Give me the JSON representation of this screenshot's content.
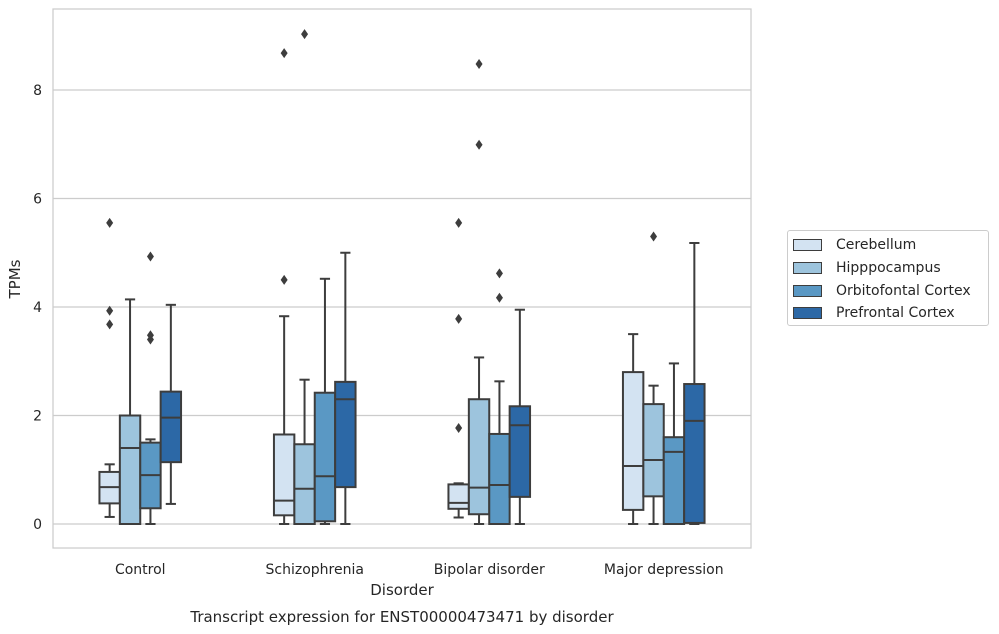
{
  "chart_data": {
    "type": "box",
    "title": "Transcript expression for ENST00000473471 by disorder",
    "xlabel": "Disorder",
    "ylabel": "TPMs",
    "ylim": [
      -0.45,
      9.6
    ],
    "yticks": [
      0,
      2,
      4,
      6,
      8
    ],
    "grid": "horizontal",
    "legend_position": "right",
    "categories": [
      "Control",
      "Schizophrenia",
      "Bipolar disorder",
      "Major depression"
    ],
    "series": [
      {
        "name": "Cerebellum",
        "color": "#d3e3f2",
        "boxes": [
          {
            "whisker_low": 0.13,
            "q1": 0.38,
            "median": 0.68,
            "q3": 0.96,
            "whisker_high": 1.1,
            "outliers": [
              3.68,
              3.93,
              5.55
            ]
          },
          {
            "whisker_low": 0.0,
            "q1": 0.16,
            "median": 0.43,
            "q3": 1.65,
            "whisker_high": 3.83,
            "outliers": [
              4.5,
              8.68
            ]
          },
          {
            "whisker_low": 0.12,
            "q1": 0.28,
            "median": 0.39,
            "q3": 0.73,
            "whisker_high": 0.75,
            "outliers": [
              1.77,
              3.78,
              5.55
            ]
          },
          {
            "whisker_low": 0.0,
            "q1": 0.26,
            "median": 1.07,
            "q3": 2.8,
            "whisker_high": 3.5,
            "outliers": []
          }
        ]
      },
      {
        "name": "Hipppocampus",
        "color": "#9dc4dd",
        "boxes": [
          {
            "whisker_low": 0.0,
            "q1": 0.0,
            "median": 1.4,
            "q3": 2.0,
            "whisker_high": 4.14,
            "outliers": []
          },
          {
            "whisker_low": 0.0,
            "q1": 0.0,
            "median": 0.65,
            "q3": 1.47,
            "whisker_high": 2.66,
            "outliers": [
              9.03
            ]
          },
          {
            "whisker_low": 0.0,
            "q1": 0.18,
            "median": 0.67,
            "q3": 2.3,
            "whisker_high": 3.07,
            "outliers": [
              6.99,
              8.48
            ]
          },
          {
            "whisker_low": 0.0,
            "q1": 0.51,
            "median": 1.18,
            "q3": 2.21,
            "whisker_high": 2.55,
            "outliers": [
              5.3
            ]
          }
        ]
      },
      {
        "name": "Orbitofontal Cortex",
        "color": "#5a98c4",
        "boxes": [
          {
            "whisker_low": 0.0,
            "q1": 0.29,
            "median": 0.9,
            "q3": 1.5,
            "whisker_high": 1.56,
            "outliers": [
              3.4,
              3.48,
              4.93
            ]
          },
          {
            "whisker_low": 0.0,
            "q1": 0.05,
            "median": 0.88,
            "q3": 2.42,
            "whisker_high": 4.52,
            "outliers": []
          },
          {
            "whisker_low": 0.0,
            "q1": 0.0,
            "median": 0.72,
            "q3": 1.66,
            "whisker_high": 2.63,
            "outliers": [
              4.17,
              4.62
            ]
          },
          {
            "whisker_low": 0.0,
            "q1": 0.0,
            "median": 1.33,
            "q3": 1.6,
            "whisker_high": 2.96,
            "outliers": []
          }
        ]
      },
      {
        "name": "Prefrontal Cortex",
        "color": "#2c68a6",
        "boxes": [
          {
            "whisker_low": 0.37,
            "q1": 1.14,
            "median": 1.96,
            "q3": 2.44,
            "whisker_high": 4.04,
            "outliers": []
          },
          {
            "whisker_low": 0.0,
            "q1": 0.68,
            "median": 2.3,
            "q3": 2.62,
            "whisker_high": 5.0,
            "outliers": []
          },
          {
            "whisker_low": 0.0,
            "q1": 0.5,
            "median": 1.82,
            "q3": 2.17,
            "whisker_high": 3.95,
            "outliers": []
          },
          {
            "whisker_low": 0.0,
            "q1": 0.02,
            "median": 1.9,
            "q3": 2.58,
            "whisker_high": 5.18,
            "outliers": []
          }
        ]
      }
    ]
  }
}
